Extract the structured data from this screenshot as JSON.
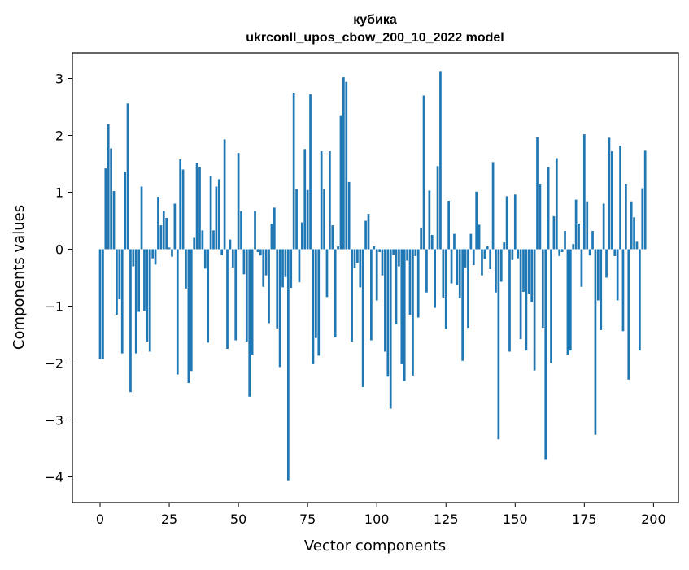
{
  "chart_data": {
    "type": "bar",
    "title": "кубика",
    "subtitle": "ukrconll_upos_cbow_200_10_2022 model",
    "xlabel": "Vector components",
    "ylabel": "Components values",
    "xlim": [
      -10,
      209
    ],
    "ylim": [
      -4.45,
      3.45
    ],
    "xticks": [
      0,
      25,
      50,
      75,
      100,
      125,
      150,
      175,
      200
    ],
    "xtick_labels": [
      "0",
      "25",
      "50",
      "75",
      "100",
      "125",
      "150",
      "175",
      "200"
    ],
    "yticks": [
      -4,
      -3,
      -2,
      -1,
      0,
      1,
      2,
      3
    ],
    "ytick_labels": [
      "−4",
      "−3",
      "−2",
      "−1",
      "0",
      "1",
      "2",
      "3"
    ],
    "grid": false,
    "bar_color": "#1f77b4",
    "values": [
      -1.93,
      -1.93,
      1.42,
      2.2,
      1.77,
      1.02,
      -1.15,
      -0.88,
      -1.83,
      1.36,
      2.56,
      -2.51,
      -0.3,
      -1.83,
      -1.1,
      1.1,
      -1.08,
      -1.62,
      -1.8,
      -0.16,
      -0.27,
      0.92,
      0.42,
      0.67,
      0.55,
      0.03,
      -0.13,
      0.8,
      -2.2,
      1.58,
      1.4,
      -0.69,
      -2.35,
      -2.14,
      0.2,
      1.52,
      1.45,
      0.33,
      -0.34,
      -1.64,
      1.29,
      0.33,
      1.1,
      1.23,
      -0.1,
      1.93,
      -1.75,
      0.17,
      -0.32,
      -1.6,
      1.69,
      0.67,
      -0.44,
      -1.62,
      -2.59,
      -1.85,
      0.67,
      -0.05,
      -0.11,
      -0.66,
      -0.46,
      -1.3,
      0.45,
      0.73,
      -1.39,
      -2.07,
      -0.67,
      -0.49,
      -4.06,
      -0.68,
      2.75,
      1.06,
      -0.58,
      0.47,
      1.76,
      1.04,
      2.72,
      -2.02,
      -1.56,
      -1.87,
      1.72,
      1.06,
      -0.84,
      1.72,
      0.42,
      -1.55,
      0.05,
      2.34,
      3.02,
      2.94,
      1.18,
      -1.62,
      -0.33,
      -0.24,
      -0.67,
      -2.42,
      0.5,
      0.62,
      -1.6,
      0.05,
      -0.9,
      -0.05,
      -0.46,
      -1.8,
      -2.24,
      -2.8,
      -0.1,
      -1.32,
      -0.3,
      -2.02,
      -2.32,
      -0.2,
      -1.15,
      -2.22,
      -0.12,
      -1.2,
      0.38,
      2.7,
      -0.76,
      1.03,
      0.25,
      -1.03,
      1.46,
      3.13,
      -0.85,
      -1.4,
      0.85,
      -0.6,
      0.27,
      -0.63,
      -0.86,
      -1.96,
      -0.32,
      -1.38,
      0.27,
      -0.28,
      1.01,
      0.43,
      -0.46,
      -0.17,
      0.05,
      -0.35,
      1.53,
      -0.76,
      -3.34,
      -0.57,
      0.12,
      0.93,
      -1.8,
      -0.19,
      0.96,
      -0.16,
      -1.58,
      -0.75,
      -1.78,
      -0.78,
      -0.93,
      -2.13,
      1.97,
      1.15,
      -1.38,
      -3.7,
      1.45,
      -2.0,
      0.58,
      1.6,
      -0.12,
      -0.05,
      0.32,
      -1.85,
      -1.78,
      0.09,
      0.87,
      0.45,
      -0.66,
      2.02,
      0.84,
      -0.11,
      0.32,
      -3.26,
      -0.9,
      -1.42,
      0.8,
      -0.5,
      1.96,
      1.72,
      -0.12,
      -0.9,
      1.82,
      -1.44,
      1.15,
      -2.29,
      0.84,
      0.56,
      0.13,
      -1.78,
      1.07,
      1.73
    ]
  }
}
